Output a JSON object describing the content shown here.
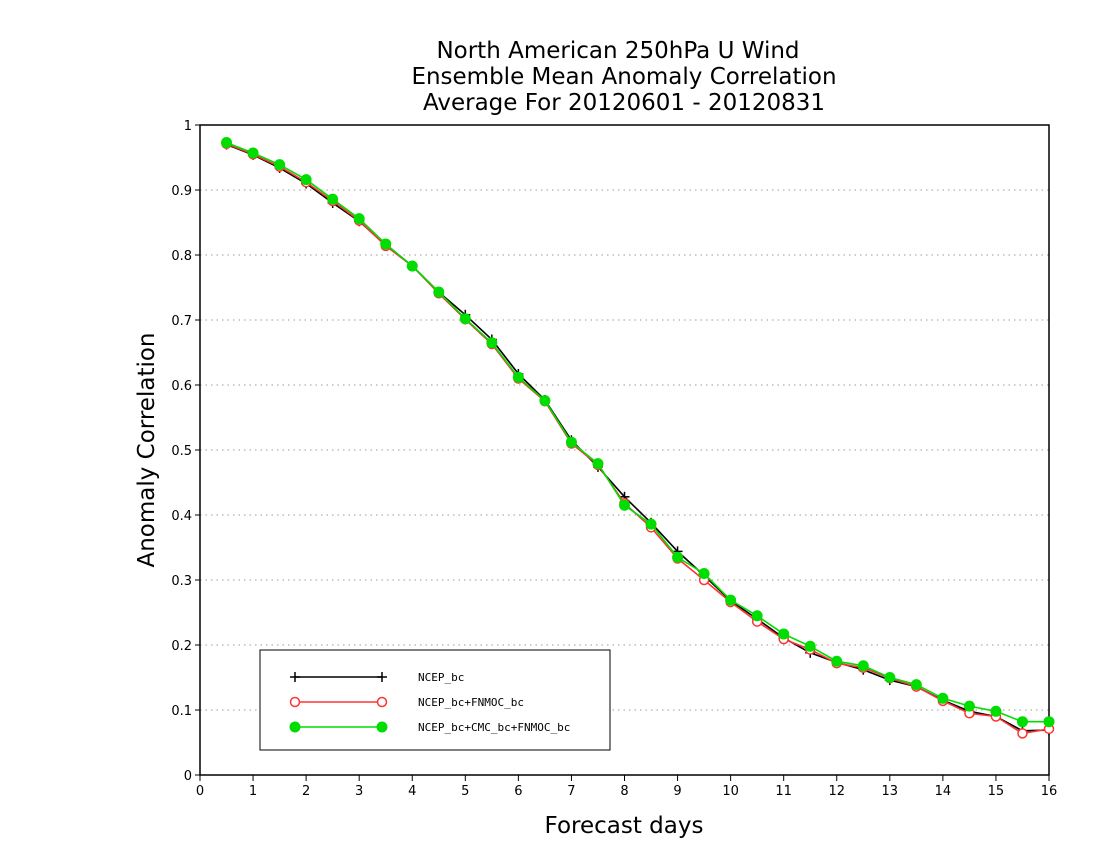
{
  "chart_data": {
    "type": "line",
    "title_lines": [
      "North American 250hPa U Wind",
      "Ensemble Mean Anomaly Correlation",
      "Average For 20120601 - 20120831"
    ],
    "xlabel": "Forecast days",
    "ylabel": "Anomaly Correlation",
    "xlim": [
      0,
      16
    ],
    "ylim": [
      0,
      1
    ],
    "x_ticks": [
      "0",
      "1",
      "2",
      "3",
      "4",
      "5",
      "6",
      "7",
      "8",
      "9",
      "10",
      "11",
      "12",
      "13",
      "14",
      "15",
      "16"
    ],
    "y_ticks": [
      "0",
      "0.1",
      "0.2",
      "0.3",
      "0.4",
      "0.5",
      "0.6",
      "0.7",
      "0.8",
      "0.9",
      "1"
    ],
    "grid": "horizontal dotted",
    "legend_position": "bottom-left",
    "x": [
      0.5,
      1,
      1.5,
      2,
      2.5,
      3,
      3.5,
      4,
      4.5,
      5,
      5.5,
      6,
      6.5,
      7,
      7.5,
      8,
      8.5,
      9,
      9.5,
      10,
      10.5,
      11,
      11.5,
      12,
      12.5,
      13,
      13.5,
      14,
      14.5,
      15,
      15.5,
      16
    ],
    "series": [
      {
        "name": "NCEP_bc",
        "color": "#000000",
        "marker": "plus",
        "values": [
          0.97,
          0.954,
          0.934,
          0.91,
          0.88,
          0.852,
          0.815,
          0.783,
          0.743,
          0.708,
          0.67,
          0.617,
          0.577,
          0.515,
          0.474,
          0.428,
          0.388,
          0.344,
          0.307,
          0.268,
          0.24,
          0.211,
          0.188,
          0.173,
          0.162,
          0.146,
          0.136,
          0.115,
          0.098,
          0.09,
          0.068,
          0.069
        ]
      },
      {
        "name": "NCEP_bc+FNMOC_bc",
        "color": "#ff3333",
        "marker": "open-circle",
        "values": [
          0.971,
          0.955,
          0.936,
          0.912,
          0.883,
          0.853,
          0.814,
          0.783,
          0.741,
          0.701,
          0.663,
          0.61,
          0.575,
          0.51,
          0.477,
          0.418,
          0.381,
          0.333,
          0.3,
          0.266,
          0.236,
          0.209,
          0.193,
          0.172,
          0.165,
          0.149,
          0.136,
          0.114,
          0.095,
          0.09,
          0.064,
          0.071
        ]
      },
      {
        "name": "NCEP_bc+CMC_bc+FNMOC_bc",
        "color": "#00dd00",
        "marker": "filled-circle",
        "values": [
          0.973,
          0.957,
          0.939,
          0.916,
          0.886,
          0.856,
          0.817,
          0.783,
          0.743,
          0.702,
          0.665,
          0.612,
          0.576,
          0.512,
          0.479,
          0.415,
          0.386,
          0.335,
          0.31,
          0.269,
          0.245,
          0.217,
          0.198,
          0.175,
          0.168,
          0.15,
          0.139,
          0.118,
          0.106,
          0.098,
          0.082,
          0.082
        ]
      }
    ]
  }
}
